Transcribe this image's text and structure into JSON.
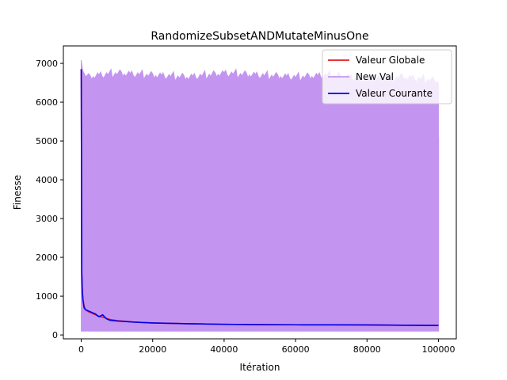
{
  "chart_data": {
    "type": "line",
    "title": "RandomizeSubsetANDMutateMinusOne",
    "xlabel": "Itération",
    "ylabel": "Finesse",
    "xlim": [
      -5000,
      105000
    ],
    "ylim": [
      -100,
      7450
    ],
    "xticks": [
      0,
      20000,
      40000,
      60000,
      80000,
      100000
    ],
    "xtick_labels": [
      "0",
      "20000",
      "40000",
      "60000",
      "80000",
      "100000"
    ],
    "yticks": [
      0,
      1000,
      2000,
      3000,
      4000,
      5000,
      6000,
      7000
    ],
    "ytick_labels": [
      "0",
      "1000",
      "2000",
      "3000",
      "4000",
      "5000",
      "6000",
      "7000"
    ],
    "grid": false,
    "legend_position": "top-right",
    "series": [
      {
        "name": "Valeur Globale",
        "color": "#e41a1c",
        "x": [
          0,
          150,
          300,
          500,
          800,
          1200,
          2000,
          3000,
          4000,
          5000,
          6000,
          7000,
          8000,
          10000,
          15000,
          20000,
          30000,
          40000,
          50000,
          60000,
          70000,
          80000,
          90000,
          100000
        ],
        "y": [
          6850,
          1600,
          1150,
          900,
          750,
          650,
          600,
          560,
          520,
          480,
          460,
          430,
          400,
          370,
          330,
          310,
          290,
          275,
          265,
          262,
          260,
          258,
          250,
          245
        ]
      },
      {
        "name": "New Val",
        "color": "#c495f0",
        "band_lower": 100,
        "x": [
          0,
          200,
          500,
          2000,
          5000,
          10000,
          20000,
          30000,
          40000,
          50000,
          60000,
          70000,
          80000,
          90000,
          100000
        ],
        "y": [
          7200,
          7150,
          6750,
          6650,
          6700,
          6750,
          6700,
          6650,
          6750,
          6700,
          6650,
          6700,
          6600,
          6650,
          6550
        ],
        "end_value": 5100
      },
      {
        "name": "Valeur Courante",
        "color": "#0000ee",
        "x": [
          0,
          150,
          300,
          500,
          800,
          1200,
          2000,
          3000,
          4000,
          4500,
          5000,
          6000,
          7000,
          8000,
          10000,
          15000,
          20000,
          30000,
          40000,
          50000,
          60000,
          70000,
          80000,
          90000,
          100000
        ],
        "y": [
          6850,
          1600,
          1100,
          900,
          700,
          650,
          620,
          580,
          540,
          500,
          470,
          520,
          420,
          380,
          360,
          330,
          310,
          290,
          275,
          265,
          262,
          260,
          258,
          250,
          245
        ]
      }
    ]
  }
}
